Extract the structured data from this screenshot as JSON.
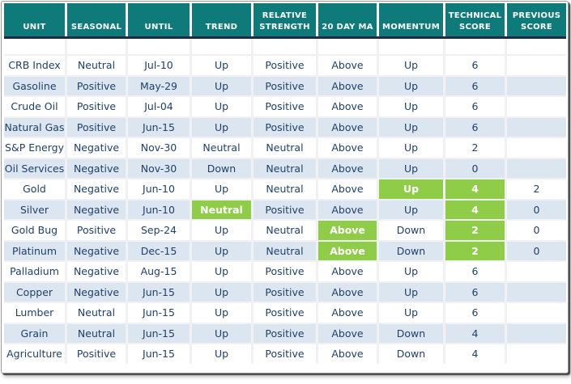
{
  "colors": {
    "header_bg": "#0e7b7a",
    "header_text": "#ffffff",
    "header_underline": "#1e2b44",
    "row_alt_bg": "#dce6f1",
    "highlight_bg": "#8fcc47",
    "highlight_text": "#ffffff",
    "cell_text": "#1f4068"
  },
  "chart_data": {
    "type": "table",
    "columns": [
      "UNIT",
      "SEASONAL",
      "UNTIL",
      "TREND",
      "RELATIVE\nSTRENGTH",
      "20 DAY MA",
      "MOMENTUM",
      "TECHNICAL\nSCORE",
      "PREVIOUS\nSCORE"
    ],
    "column_keys": [
      "unit",
      "seasonal",
      "until",
      "trend",
      "relative_strength",
      "ma20",
      "momentum",
      "technical_score",
      "previous_score"
    ],
    "rows": [
      {
        "unit": "CRB Index",
        "seasonal": "Neutral",
        "until": "Jul-10",
        "trend": "Up",
        "relative_strength": "Positive",
        "ma20": "Above",
        "momentum": "Up",
        "technical_score": "6",
        "previous_score": "",
        "highlights": []
      },
      {
        "unit": "Gasoline",
        "seasonal": "Positive",
        "until": "May-29",
        "trend": "Up",
        "relative_strength": "Positive",
        "ma20": "Above",
        "momentum": "Up",
        "technical_score": "6",
        "previous_score": "",
        "highlights": []
      },
      {
        "unit": "Crude Oil",
        "seasonal": "Positive",
        "until": "Jul-04",
        "trend": "Up",
        "relative_strength": "Positive",
        "ma20": "Above",
        "momentum": "Up",
        "technical_score": "6",
        "previous_score": "",
        "highlights": []
      },
      {
        "unit": "Natural Gas",
        "seasonal": "Positive",
        "until": "Jun-15",
        "trend": "Up",
        "relative_strength": "Positive",
        "ma20": "Above",
        "momentum": "Up",
        "technical_score": "6",
        "previous_score": "",
        "highlights": []
      },
      {
        "unit": "S&P Energy",
        "seasonal": "Negative",
        "until": "Nov-30",
        "trend": "Neutral",
        "relative_strength": "Neutral",
        "ma20": "Above",
        "momentum": "Up",
        "technical_score": "2",
        "previous_score": "",
        "highlights": []
      },
      {
        "unit": "Oil Services",
        "seasonal": "Negative",
        "until": "Nov-30",
        "trend": "Down",
        "relative_strength": "Neutral",
        "ma20": "Above",
        "momentum": "Up",
        "technical_score": "0",
        "previous_score": "",
        "highlights": []
      },
      {
        "unit": "Gold",
        "seasonal": "Negative",
        "until": "Jun-10",
        "trend": "Up",
        "relative_strength": "Neutral",
        "ma20": "Above",
        "momentum": "Up",
        "technical_score": "4",
        "previous_score": "2",
        "highlights": [
          "momentum",
          "technical_score"
        ]
      },
      {
        "unit": "Silver",
        "seasonal": "Negative",
        "until": "Jun-10",
        "trend": "Neutral",
        "relative_strength": "Positive",
        "ma20": "Above",
        "momentum": "Up",
        "technical_score": "4",
        "previous_score": "0",
        "highlights": [
          "trend",
          "technical_score"
        ]
      },
      {
        "unit": "Gold Bug",
        "seasonal": "Positive",
        "until": "Sep-24",
        "trend": "Up",
        "relative_strength": "Neutral",
        "ma20": "Above",
        "momentum": "Down",
        "technical_score": "2",
        "previous_score": "0",
        "highlights": [
          "ma20",
          "technical_score"
        ]
      },
      {
        "unit": "Platinum",
        "seasonal": "Negative",
        "until": "Dec-15",
        "trend": "Up",
        "relative_strength": "Neutral",
        "ma20": "Above",
        "momentum": "Down",
        "technical_score": "2",
        "previous_score": "0",
        "highlights": [
          "ma20",
          "technical_score"
        ]
      },
      {
        "unit": "Palladium",
        "seasonal": "Negative",
        "until": "Aug-15",
        "trend": "Up",
        "relative_strength": "Positive",
        "ma20": "Above",
        "momentum": "Up",
        "technical_score": "6",
        "previous_score": "",
        "highlights": []
      },
      {
        "unit": "Copper",
        "seasonal": "Negative",
        "until": "Jun-15",
        "trend": "Up",
        "relative_strength": "Positive",
        "ma20": "Above",
        "momentum": "Up",
        "technical_score": "6",
        "previous_score": "",
        "highlights": []
      },
      {
        "unit": "Lumber",
        "seasonal": "Neutral",
        "until": "Jun-15",
        "trend": "Up",
        "relative_strength": "Positive",
        "ma20": "Above",
        "momentum": "Up",
        "technical_score": "6",
        "previous_score": "",
        "highlights": []
      },
      {
        "unit": "Grain",
        "seasonal": "Neutral",
        "until": "Jun-15",
        "trend": "Up",
        "relative_strength": "Positive",
        "ma20": "Above",
        "momentum": "Down",
        "technical_score": "4",
        "previous_score": "",
        "highlights": []
      },
      {
        "unit": "Agriculture",
        "seasonal": "Positive",
        "until": "Jun-15",
        "trend": "Up",
        "relative_strength": "Positive",
        "ma20": "Above",
        "momentum": "Down",
        "technical_score": "4",
        "previous_score": "",
        "highlights": []
      }
    ]
  }
}
